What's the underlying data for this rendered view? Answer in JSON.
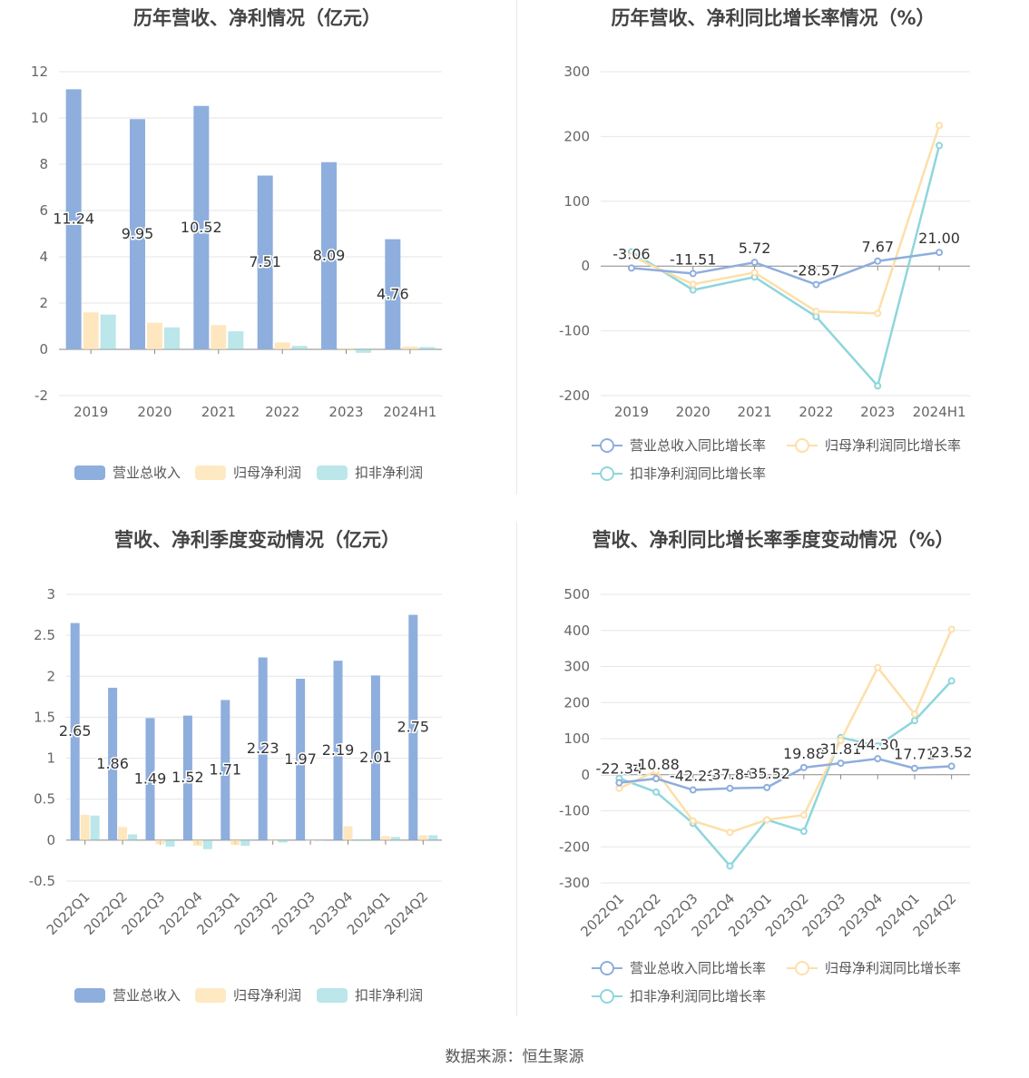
{
  "footer": {
    "source": "数据来源：恒生聚源"
  },
  "colors": {
    "revenue": "#8eaedd",
    "net_profit": "#fddfa9",
    "deducted_profit": "#8ed6dc"
  },
  "legends": {
    "bar": [
      "营业总收入",
      "归母净利润",
      "扣非净利润"
    ],
    "line": [
      "营业总收入同比增长率",
      "归母净利润同比增长率",
      "扣非净利润同比增长率"
    ]
  },
  "chart_data": [
    {
      "type": "bar",
      "title": "历年营收、净利情况（亿元）",
      "categories": [
        "2019",
        "2020",
        "2021",
        "2022",
        "2023",
        "2024H1"
      ],
      "ylim": [
        -2,
        12
      ],
      "yticks": [
        -2,
        0,
        2,
        4,
        6,
        8,
        10,
        12
      ],
      "series": [
        {
          "name": "营业总收入",
          "values": [
            11.24,
            9.95,
            10.52,
            7.51,
            8.09,
            4.76
          ],
          "labels": [
            "11.24",
            "9.95",
            "10.52",
            "7.51",
            "8.09",
            "4.76"
          ]
        },
        {
          "name": "归母净利润",
          "values": [
            1.6,
            1.15,
            1.05,
            0.3,
            0.05,
            0.12
          ]
        },
        {
          "name": "扣非净利润",
          "values": [
            1.5,
            0.95,
            0.78,
            0.15,
            -0.15,
            0.1
          ]
        }
      ]
    },
    {
      "type": "line",
      "title": "历年营收、净利同比增长率情况（%）",
      "categories": [
        "2019",
        "2020",
        "2021",
        "2022",
        "2023",
        "2024H1"
      ],
      "ylim": [
        -200,
        300
      ],
      "yticks": [
        -200,
        -100,
        0,
        100,
        200,
        300
      ],
      "series": [
        {
          "name": "营业总收入同比增长率",
          "values": [
            -3.06,
            -11.51,
            5.72,
            -28.57,
            7.67,
            21.0
          ],
          "labels": [
            "-3.06",
            "-11.51",
            "5.72",
            "-28.57",
            "7.67",
            "21.00"
          ]
        },
        {
          "name": "归母净利润同比增长率",
          "values": [
            15,
            -28,
            -10,
            -70,
            -73,
            217
          ]
        },
        {
          "name": "扣非净利润同比增长率",
          "values": [
            22,
            -37,
            -17,
            -78,
            -185,
            186
          ]
        }
      ]
    },
    {
      "type": "bar",
      "title": "营收、净利季度变动情况（亿元）",
      "categories": [
        "2022Q1",
        "2022Q2",
        "2022Q3",
        "2022Q4",
        "2023Q1",
        "2023Q2",
        "2023Q3",
        "2023Q4",
        "2024Q1",
        "2024Q2"
      ],
      "ylim": [
        -0.5,
        3
      ],
      "yticks": [
        -0.5,
        0,
        0.5,
        1,
        1.5,
        2,
        2.5,
        3
      ],
      "series": [
        {
          "name": "营业总收入",
          "values": [
            2.65,
            1.86,
            1.49,
            1.52,
            1.71,
            2.23,
            1.97,
            2.19,
            2.01,
            2.75
          ],
          "labels": [
            "2.65",
            "1.86",
            "1.49",
            "1.52",
            "1.71",
            "2.23",
            "1.97",
            "2.19",
            "2.01",
            "2.75"
          ]
        },
        {
          "name": "归母净利润",
          "values": [
            0.31,
            0.16,
            -0.05,
            -0.07,
            -0.06,
            -0.01,
            0.0,
            0.17,
            0.05,
            0.06
          ]
        },
        {
          "name": "扣非净利润",
          "values": [
            0.3,
            0.07,
            -0.08,
            -0.11,
            -0.07,
            -0.03,
            0.0,
            -0.01,
            0.04,
            0.06
          ]
        }
      ]
    },
    {
      "type": "line",
      "title": "营收、净利同比增长率季度变动情况（%）",
      "categories": [
        "2022Q1",
        "2022Q2",
        "2022Q3",
        "2022Q4",
        "2023Q1",
        "2023Q2",
        "2023Q3",
        "2023Q4",
        "2024Q1",
        "2024Q2"
      ],
      "ylim": [
        -300,
        500
      ],
      "yticks": [
        -300,
        -200,
        -100,
        0,
        100,
        200,
        300,
        400,
        500
      ],
      "series": [
        {
          "name": "营业总收入同比增长率",
          "values": [
            -22.34,
            -10.88,
            -42.29,
            -37.84,
            -35.52,
            19.88,
            31.81,
            44.3,
            17.71,
            23.52
          ],
          "labels": [
            "-22.34",
            "-10.88",
            "-42.29",
            "-37.84",
            "-35.52",
            "19.88",
            "31.81",
            "44.30",
            "17.71",
            "23.52"
          ]
        },
        {
          "name": "归母净利润同比增长率",
          "values": [
            -38,
            10,
            -128,
            -160,
            -125,
            -112,
            95,
            297,
            168,
            403
          ]
        },
        {
          "name": "扣非净利润同比增长率",
          "values": [
            -10,
            -48,
            -135,
            -253,
            -125,
            -157,
            103,
            80,
            150,
            260
          ]
        }
      ]
    }
  ]
}
